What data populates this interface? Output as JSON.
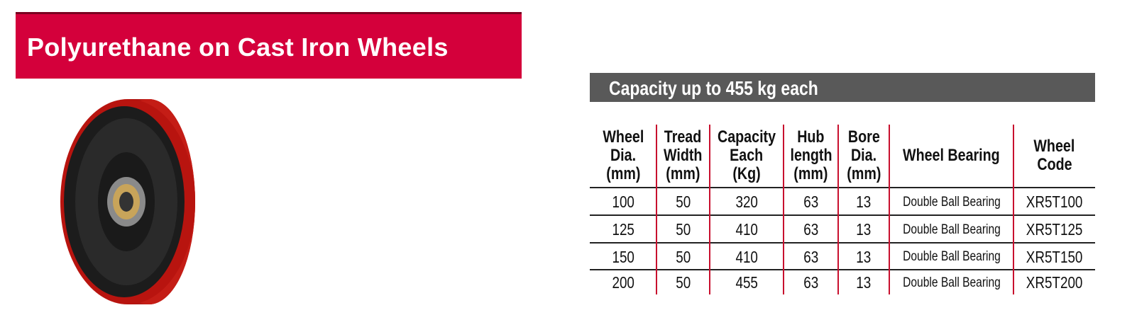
{
  "header": {
    "title": "Polyurethane on Cast Iron Wheels"
  },
  "table": {
    "caption": "Capacity up to 455 kg each",
    "columns": [
      [
        "Wheel",
        "Dia.",
        "(mm)"
      ],
      [
        "Tread",
        "Width",
        "(mm)"
      ],
      [
        "Capacity",
        "Each",
        "(Kg)"
      ],
      [
        "Hub",
        "length",
        "(mm)"
      ],
      [
        "Bore",
        "Dia.",
        "(mm)"
      ],
      [
        "Wheel Bearing"
      ],
      [
        "Wheel",
        "Code"
      ]
    ],
    "rows": [
      [
        100,
        50,
        320,
        63,
        13,
        "Double Ball Bearing",
        "XR5T100"
      ],
      [
        125,
        50,
        410,
        63,
        13,
        "Double Ball Bearing",
        "XR5T125"
      ],
      [
        150,
        50,
        410,
        63,
        13,
        "Double Ball Bearing",
        "XR5T150"
      ],
      [
        200,
        50,
        455,
        63,
        13,
        "Double Ball Bearing",
        "XR5T200"
      ]
    ]
  }
}
